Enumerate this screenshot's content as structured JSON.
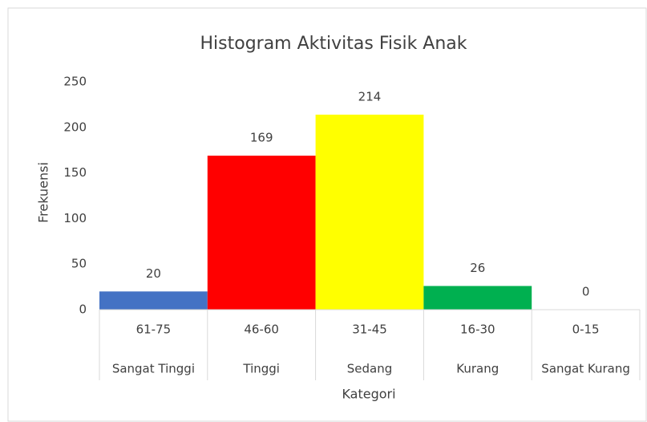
{
  "chart_data": {
    "type": "bar",
    "title": "Histogram Aktivitas Fisik Anak",
    "x_label": "Kategori",
    "y_label": "Frekuensi",
    "categories": [
      "61-75",
      "46-60",
      "31-45",
      "16-30",
      "0-15"
    ],
    "subcategories": [
      "Sangat Tinggi",
      "Tinggi",
      "Sedang",
      "Kurang",
      "Sangat Kurang"
    ],
    "values": [
      20,
      169,
      214,
      26,
      0
    ],
    "colors": [
      "#4472c4",
      "#ff0000",
      "#ffff00",
      "#00b050",
      "#a5a5a5"
    ],
    "ylim": [
      0,
      250
    ],
    "yticks": [
      0,
      50,
      100,
      150,
      200,
      250
    ],
    "grid": false
  }
}
